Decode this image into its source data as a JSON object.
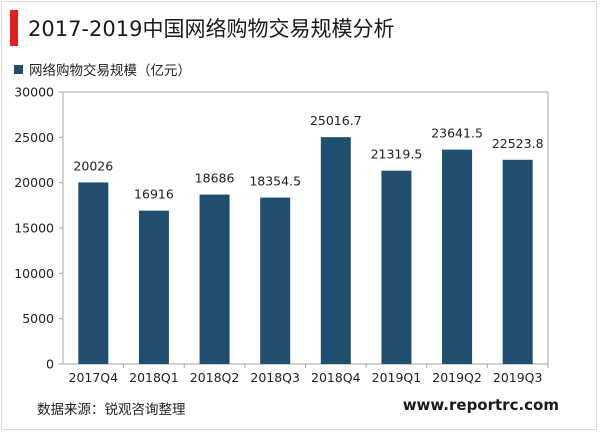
{
  "title": "2017-2019中国网络购物交易规模分析",
  "legend_label": "网络购物交易规模（亿元）",
  "source": "数据来源：锐观咨询整理",
  "website": "www.reportrc.com",
  "colors": {
    "accent": "#e02020",
    "bar": "#1f4e6e"
  },
  "chart_data": {
    "type": "bar",
    "categories": [
      "2017Q4",
      "2018Q1",
      "2018Q2",
      "2018Q3",
      "2018Q4",
      "2019Q1",
      "2019Q2",
      "2019Q3"
    ],
    "values": [
      20026,
      16916,
      18686,
      18354.5,
      25016.7,
      21319.5,
      23641.5,
      22523.8
    ],
    "value_labels": [
      "20026",
      "16916",
      "18686",
      "18354.5",
      "25016.7",
      "21319.5",
      "23641.5",
      "22523.8"
    ],
    "y_ticks": [
      "0",
      "5000",
      "10000",
      "15000",
      "20000",
      "25000",
      "30000"
    ],
    "ylim": [
      0,
      30000
    ],
    "grid": false,
    "legend_position": "top-left"
  }
}
